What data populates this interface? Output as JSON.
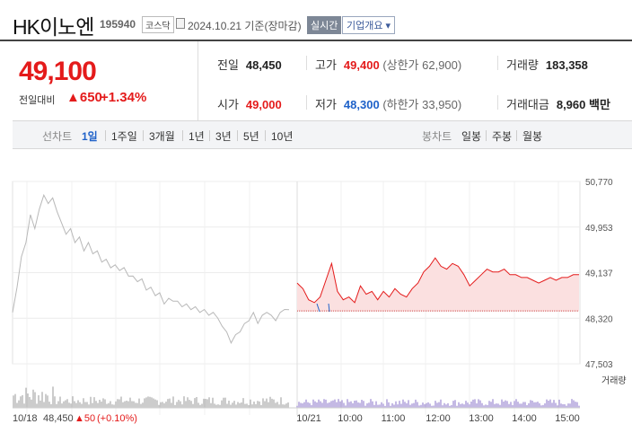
{
  "header": {
    "name": "HK이노엔",
    "code": "195940",
    "market": "코스닥",
    "date_text": "2024.10.21 기준(장마감)",
    "live_label": "실시간",
    "corp_label": "기업개요 ▾"
  },
  "price": {
    "current": "49,100",
    "change_label": "전일대비",
    "change_value": "▲650",
    "change_pct": "+1.34%"
  },
  "stats": {
    "prev_close": {
      "label": "전일",
      "value": "48,450"
    },
    "high": {
      "label": "고가",
      "value": "49,400",
      "note": "(상한가 62,900)"
    },
    "volume": {
      "label": "거래량",
      "value": "183,358"
    },
    "open": {
      "label": "시가",
      "value": "49,000"
    },
    "low": {
      "label": "저가",
      "value": "48,300",
      "note": "(하한가 33,950)"
    },
    "amount": {
      "label": "거래대금",
      "value": "8,960 백만"
    }
  },
  "tabs": {
    "line_label": "선차트",
    "line_periods": [
      "1일",
      "1주일",
      "3개월",
      "1년",
      "3년",
      "5년",
      "10년"
    ],
    "active_period": "1일",
    "candle_label": "봉차트",
    "candle_periods": [
      "일봉",
      "주봉",
      "월봉"
    ]
  },
  "colors": {
    "up": "#e41b1b",
    "down": "#1f62c9",
    "prev_day_line": "#b8b8b8"
  },
  "chart_data": {
    "type": "line",
    "y_ticks": [
      "50,770",
      "49,953",
      "49,137",
      "48,320",
      "47,503"
    ],
    "ylim": [
      47503,
      50770
    ],
    "baseline": 48450,
    "x_ticks": [
      "10/21",
      "10:00",
      "11:00",
      "12:00",
      "13:00",
      "14:00",
      "15:00"
    ],
    "prev_day_label": "10/18",
    "footer_prev": {
      "price": "48,450",
      "change": "▲50",
      "pct": "(+0.10%)"
    },
    "volume_label": "거래량",
    "series": [
      {
        "values": [
          48400,
          48900,
          49400,
          49700,
          50150,
          49950,
          50250,
          50550,
          50350,
          50500,
          50200,
          50050,
          49800,
          49950,
          49650,
          49800,
          49500,
          49700,
          49450,
          49550,
          49300,
          49400,
          49200,
          49300,
          49150,
          49250,
          49050,
          49100,
          48950,
          49050,
          48800,
          48900,
          48700,
          48800,
          48550,
          48700,
          48600,
          48650,
          48500,
          48600,
          48450,
          48550,
          48400,
          48500,
          48350,
          48450,
          48300,
          48200,
          48050,
          47900,
          48000,
          48100,
          48200,
          48300,
          48400,
          48250,
          48350,
          48450,
          48350,
          48300,
          48400,
          48500,
          48450
        ]
      },
      {
        "values": [
          48950,
          48850,
          48650,
          48600,
          48700,
          49000,
          49300,
          48800,
          48650,
          48700,
          48600,
          48900,
          48750,
          48800,
          48650,
          48800,
          48700,
          48850,
          48750,
          48700,
          48850,
          48950,
          49150,
          49250,
          49400,
          49250,
          49200,
          49300,
          49250,
          49100,
          48900,
          49000,
          49100,
          49200,
          49150,
          49150,
          49200,
          49100,
          49100,
          49050,
          49050,
          49000,
          48950,
          49000,
          49050,
          49000,
          49050,
          49050,
          49100,
          49100
        ]
      }
    ]
  }
}
